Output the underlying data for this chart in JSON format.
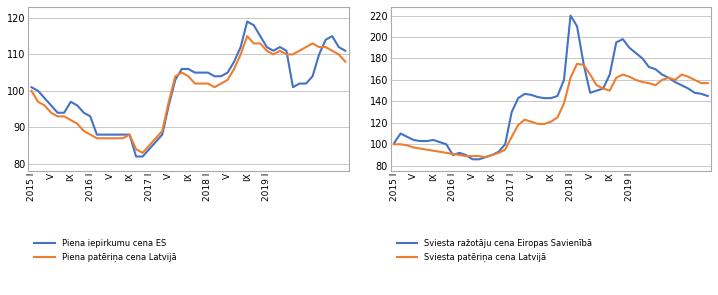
{
  "left_chart": {
    "blue_line": [
      101,
      100,
      98,
      96,
      94,
      94,
      97,
      96,
      94,
      93,
      88,
      88,
      88,
      88,
      88,
      88,
      82,
      82,
      84,
      86,
      88,
      96,
      103,
      106,
      106,
      105,
      105,
      105,
      104,
      104,
      105,
      108,
      112,
      119,
      118,
      115,
      112,
      111,
      112,
      111,
      101,
      102,
      102,
      104,
      110,
      114,
      115,
      112,
      111
    ],
    "orange_line": [
      100,
      97,
      96,
      94,
      93,
      93,
      92,
      91,
      89,
      88,
      87,
      87,
      87,
      87,
      87,
      88,
      84,
      83,
      85,
      87,
      89,
      97,
      104,
      105,
      104,
      102,
      102,
      102,
      101,
      102,
      103,
      106,
      110,
      115,
      113,
      113,
      111,
      110,
      111,
      110,
      110,
      111,
      112,
      113,
      112,
      112,
      111,
      110,
      108
    ],
    "ylabel_ticks": [
      80,
      90,
      100,
      110,
      120
    ],
    "ylim": [
      78,
      123
    ],
    "legend1": "Piena iepirkumu cena ES",
    "legend2": "Piena patēriņa cena Latvijā"
  },
  "right_chart": {
    "blue_line": [
      101,
      110,
      107,
      104,
      103,
      103,
      104,
      102,
      100,
      90,
      92,
      90,
      86,
      86,
      88,
      90,
      93,
      100,
      130,
      143,
      147,
      146,
      144,
      143,
      143,
      145,
      160,
      220,
      210,
      175,
      148,
      150,
      152,
      165,
      195,
      198,
      190,
      185,
      180,
      172,
      170,
      165,
      162,
      158,
      155,
      152,
      148,
      147,
      145
    ],
    "orange_line": [
      100,
      100,
      99,
      97,
      96,
      95,
      94,
      93,
      92,
      91,
      90,
      89,
      89,
      89,
      88,
      90,
      92,
      95,
      107,
      118,
      123,
      121,
      119,
      119,
      121,
      125,
      138,
      162,
      175,
      174,
      165,
      155,
      152,
      150,
      162,
      165,
      163,
      160,
      158,
      157,
      155,
      160,
      162,
      160,
      165,
      163,
      160,
      157,
      157
    ],
    "ylabel_ticks": [
      80,
      100,
      120,
      140,
      160,
      180,
      200,
      220
    ],
    "ylim": [
      75,
      228
    ],
    "legend1": "Sviesta ražotāju cena Eiropas Savienībā",
    "legend2": "Sviesta patēriņa cena Latvijā"
  },
  "x_tick_positions": [
    0,
    3,
    6,
    9,
    12,
    15,
    18,
    21,
    24,
    27,
    30,
    33,
    36,
    39,
    42,
    45,
    48
  ],
  "x_tick_labels": [
    "2015 I",
    "V",
    "IX",
    "2016 I",
    "V",
    "IX",
    "2017 I",
    "V",
    "IX",
    "2018 I",
    "V",
    "IX",
    "2019 I",
    "",
    "",
    "",
    ""
  ],
  "blue_color": "#4472C4",
  "orange_color": "#ED7D31",
  "grid_color": "#BFBFBF",
  "background_color": "#FFFFFF",
  "border_color": "#AAAAAA"
}
